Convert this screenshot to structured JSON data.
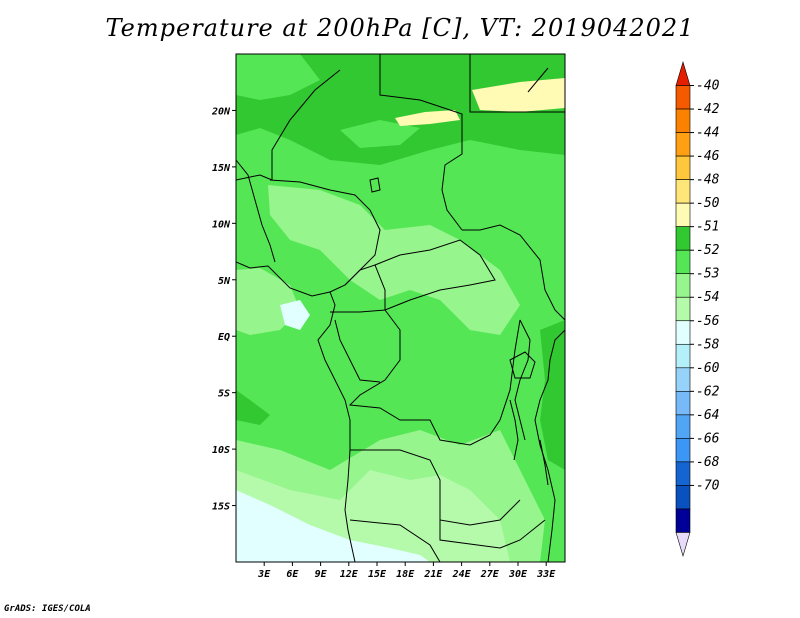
{
  "title": "Temperature at 200hPa [C], VT: 2019042021",
  "credit": "GrADS: IGES/COLA",
  "map": {
    "lon_range": [
      0,
      35
    ],
    "lat_range": [
      -20,
      25
    ],
    "lat_ticks": [
      {
        "value": 20,
        "label": "20N"
      },
      {
        "value": 15,
        "label": "15N"
      },
      {
        "value": 10,
        "label": "10N"
      },
      {
        "value": 5,
        "label": "5N"
      },
      {
        "value": 0,
        "label": "EQ"
      },
      {
        "value": -5,
        "label": "5S"
      },
      {
        "value": -10,
        "label": "10S"
      },
      {
        "value": -15,
        "label": "15S"
      }
    ],
    "lon_ticks": [
      {
        "value": 3,
        "label": "3E"
      },
      {
        "value": 6,
        "label": "6E"
      },
      {
        "value": 9,
        "label": "9E"
      },
      {
        "value": 12,
        "label": "12E"
      },
      {
        "value": 15,
        "label": "15E"
      },
      {
        "value": 18,
        "label": "18E"
      },
      {
        "value": 21,
        "label": "21E"
      },
      {
        "value": 24,
        "label": "24E"
      },
      {
        "value": 27,
        "label": "27E"
      },
      {
        "value": 30,
        "label": "30E"
      },
      {
        "value": 33,
        "label": "33E"
      }
    ]
  },
  "colorbar": {
    "levels": [
      "-40",
      "-42",
      "-44",
      "-46",
      "-48",
      "-50",
      "-51",
      "-52",
      "-53",
      "-54",
      "-56",
      "-58",
      "-60",
      "-62",
      "-64",
      "-66",
      "-68",
      "-70"
    ],
    "colors": [
      "#e61e00",
      "#f55a00",
      "#fa8200",
      "#ffa014",
      "#ffc83c",
      "#ffe678",
      "#fffab4",
      "#32c832",
      "#55e655",
      "#96f58c",
      "#b4faaa",
      "#e1ffff",
      "#b4f0fa",
      "#96d2fa",
      "#78b9fa",
      "#50a5f5",
      "#3c96f5",
      "#1464d2",
      "#0a50be",
      "#000096",
      "#e6dcfa"
    ]
  },
  "legend_colors": {
    "c51": "#fffab4",
    "c52": "#32c832",
    "c53": "#55e655",
    "c54": "#96f58c",
    "c55": "#b4faaa",
    "c56": "#e1ffff"
  }
}
